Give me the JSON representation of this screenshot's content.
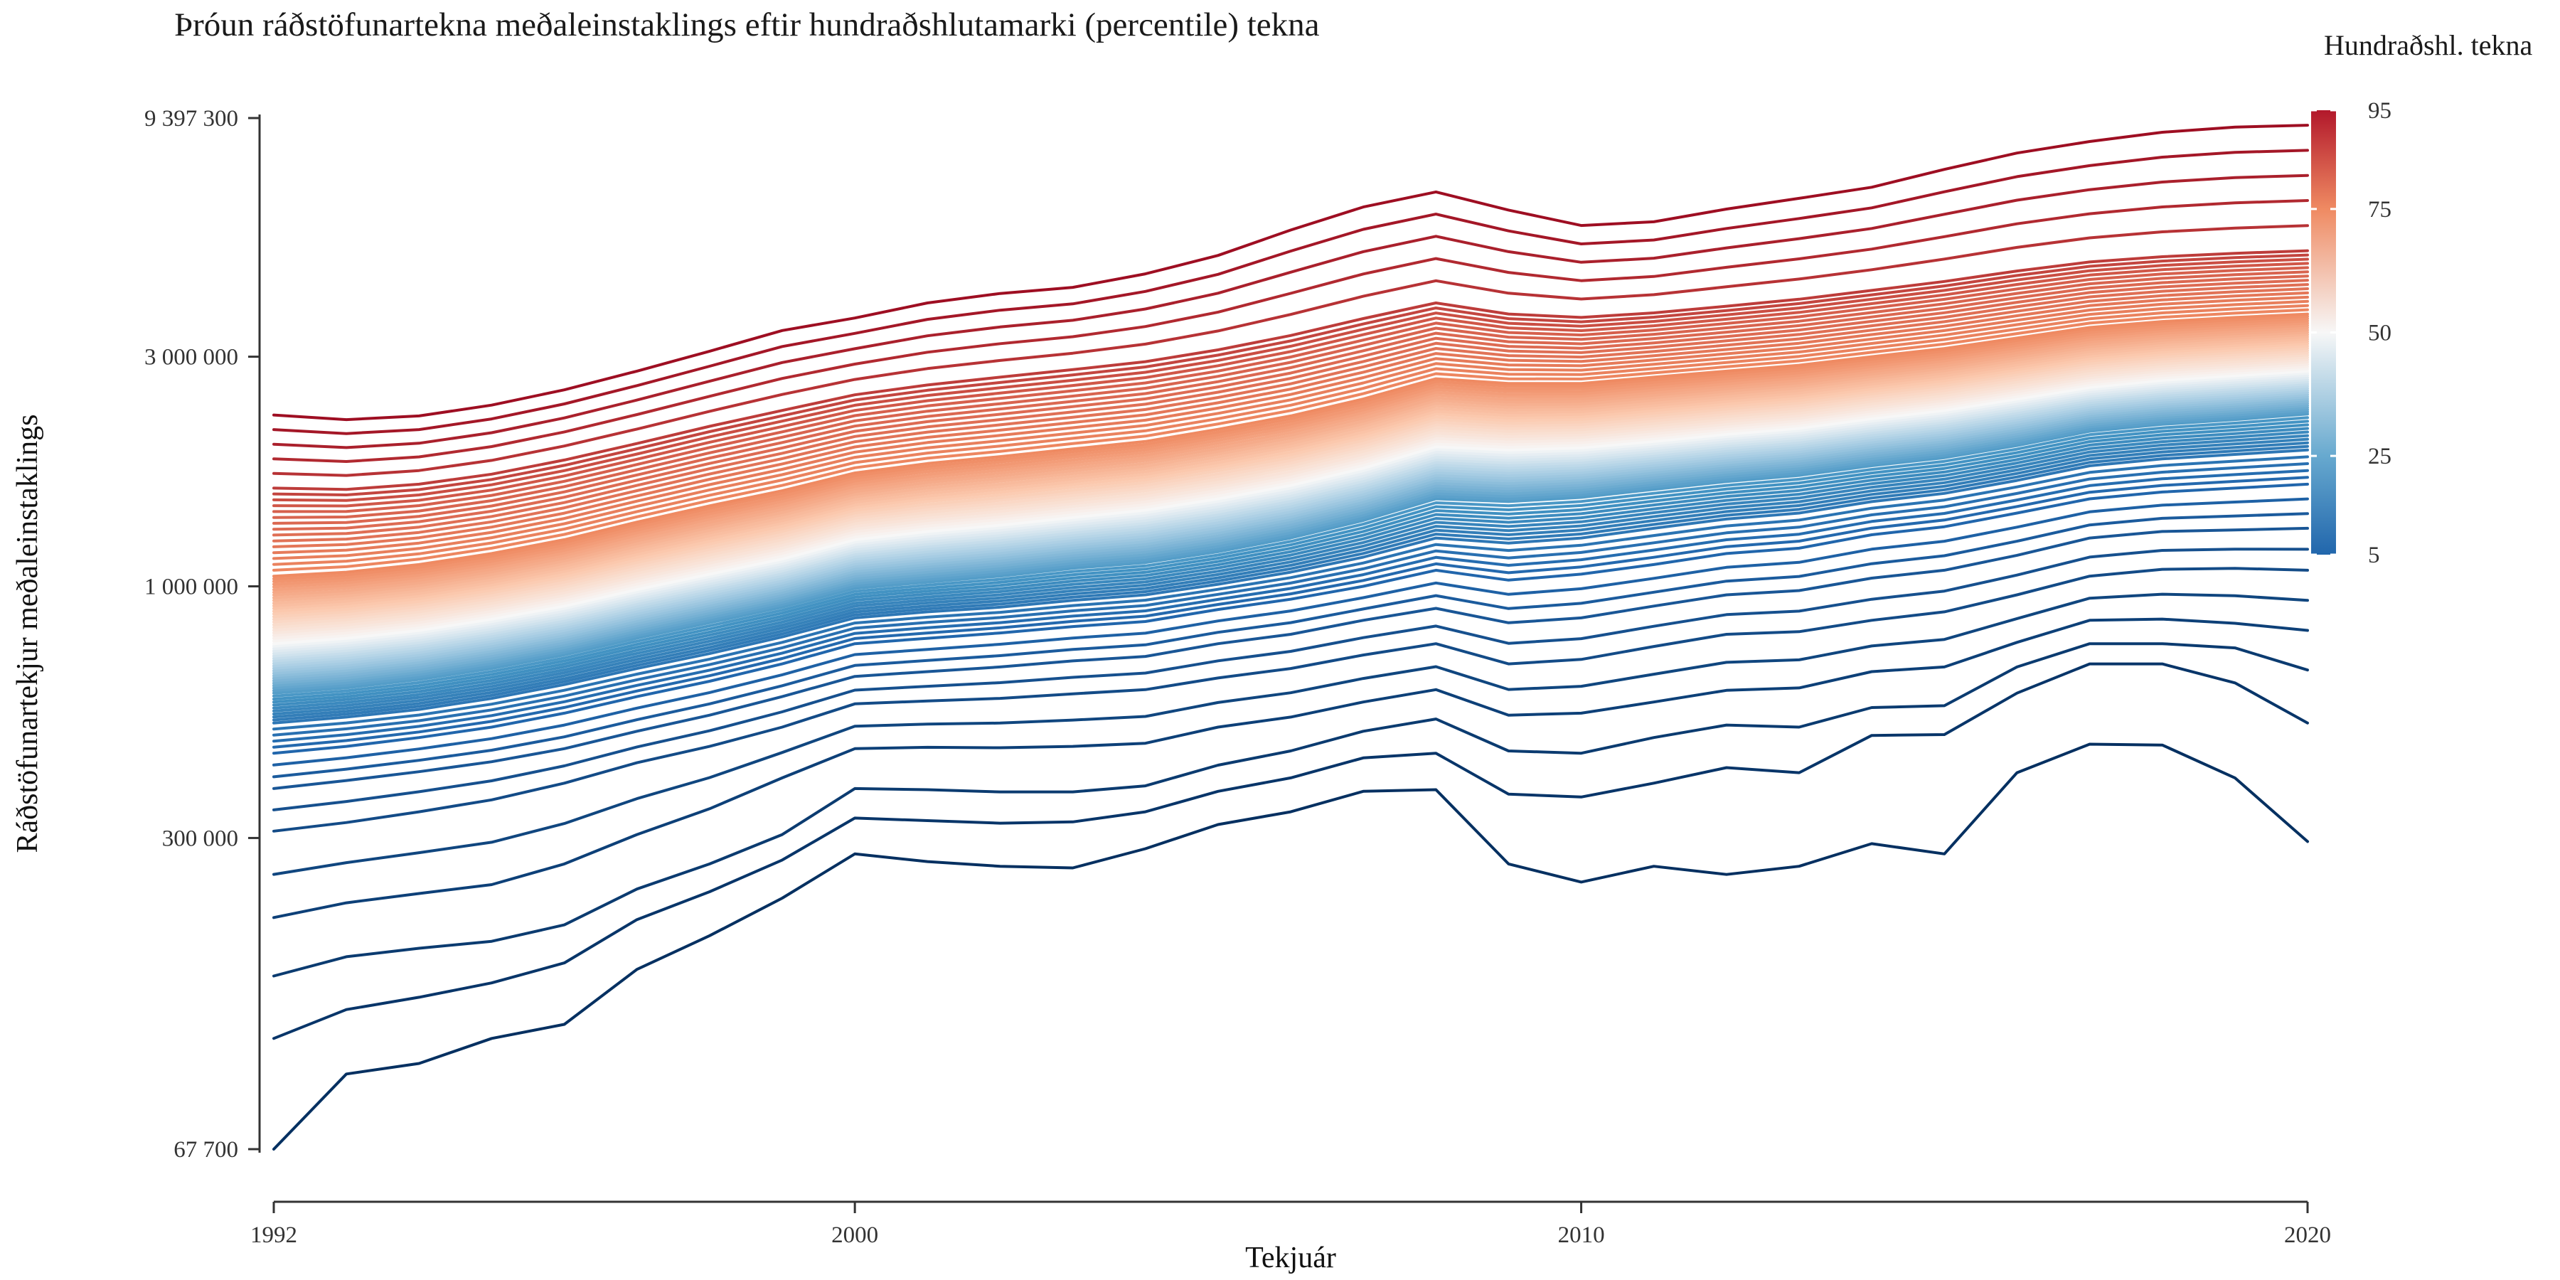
{
  "chart_data": {
    "type": "line",
    "title": "Þróun ráðstöfunartekna meðaleinstaklings eftir hundraðshlutamarki (percentile) tekna",
    "xlabel": "Tekjuár",
    "ylabel": "Ráðstöfunartekjur meðaleinstaklings",
    "x": [
      1992,
      1993,
      1994,
      1995,
      1996,
      1997,
      1998,
      1999,
      2000,
      2001,
      2002,
      2003,
      2004,
      2005,
      2006,
      2007,
      2008,
      2009,
      2010,
      2011,
      2012,
      2013,
      2014,
      2015,
      2016,
      2017,
      2018,
      2019,
      2020
    ],
    "xlim": [
      1992,
      2020
    ],
    "x_ticks": [
      "1992",
      "2000",
      "2010",
      "2020"
    ],
    "y_scale": "log",
    "ylim": [
      67700,
      9397300
    ],
    "y_ticks": [
      {
        "value": 9397300,
        "label": "9 397 300"
      },
      {
        "value": 3000000,
        "label": "3 000 000"
      },
      {
        "value": 1000000,
        "label": "1 000 000"
      },
      {
        "value": 300000,
        "label": "300 000"
      },
      {
        "value": 67700,
        "label": "67 700"
      }
    ],
    "legend": {
      "title": "Hundraðshl. tekna",
      "position": "right",
      "ticks": [
        "95",
        "75",
        "50",
        "25",
        "5"
      ],
      "colors": [
        "#b2182b",
        "#ef8a62",
        "#f7f7f7",
        "#67a9cf",
        "#2166ac"
      ]
    },
    "grid": false,
    "series_note": "One line per income percentile; anchor curves below, intermediate percentiles interpolated in log space.",
    "anchor_series": [
      {
        "percentile": 5,
        "values": [
          67700,
          97000,
          102000,
          115000,
          123000,
          160000,
          188000,
          225000,
          278000,
          268000,
          262000,
          260000,
          285000,
          320000,
          340000,
          375000,
          378000,
          265000,
          243000,
          262000,
          252000,
          262000,
          292000,
          278000,
          410000,
          470000,
          468000,
          400000,
          295000
        ]
      },
      {
        "percentile": 6,
        "values": [
          115000,
          132000,
          140000,
          150000,
          165000,
          203000,
          232000,
          270000,
          330000,
          326000,
          322000,
          324000,
          340000,
          375000,
          400000,
          440000,
          450000,
          370000,
          365000,
          390000,
          420000,
          410000,
          490000,
          492000,
          600000,
          690000,
          690000,
          630000,
          520000
        ]
      },
      {
        "percentile": 7,
        "values": [
          155000,
          170000,
          177000,
          183000,
          198000,
          235000,
          265000,
          305000,
          380000,
          378000,
          374000,
          374000,
          385000,
          425000,
          455000,
          500000,
          530000,
          455000,
          450000,
          485000,
          515000,
          510000,
          560000,
          565000,
          680000,
          760000,
          760000,
          745000,
          670000
        ]
      },
      {
        "percentile": 8,
        "values": [
          205000,
          220000,
          230000,
          240000,
          265000,
          305000,
          345000,
          400000,
          460000,
          463000,
          462000,
          465000,
          472000,
          510000,
          535000,
          575000,
          610000,
          540000,
          545000,
          575000,
          608000,
          615000,
          665000,
          680000,
          765000,
          850000,
          855000,
          838000,
          810000
        ]
      },
      {
        "percentile": 10,
        "values": [
          310000,
          323000,
          340000,
          360000,
          390000,
          430000,
          465000,
          510000,
          570000,
          578000,
          585000,
          598000,
          610000,
          645000,
          675000,
          720000,
          760000,
          690000,
          705000,
          750000,
          795000,
          805000,
          850000,
          885000,
          960000,
          1050000,
          1085000,
          1090000,
          1080000
        ]
      },
      {
        "percentile": 12,
        "values": [
          380000,
          395000,
          412000,
          432000,
          460000,
          500000,
          540000,
          590000,
          650000,
          665000,
          680000,
          700000,
          715000,
          760000,
          795000,
          850000,
          900000,
          840000,
          860000,
          910000,
          960000,
          980000,
          1040000,
          1080000,
          1160000,
          1260000,
          1300000,
          1310000,
          1320000
        ]
      },
      {
        "percentile": 15,
        "values": [
          450000,
          465000,
          485000,
          510000,
          545000,
          590000,
          635000,
          690000,
          760000,
          780000,
          800000,
          825000,
          845000,
          895000,
          940000,
          1000000,
          1080000,
          1030000,
          1060000,
          1110000,
          1170000,
          1200000,
          1280000,
          1330000,
          1420000,
          1520000,
          1570000,
          1600000,
          1630000
        ]
      },
      {
        "percentile": 20,
        "values": [
          520000,
          535000,
          555000,
          585000,
          625000,
          675000,
          725000,
          785000,
          860000,
          885000,
          905000,
          935000,
          960000,
          1010000,
          1070000,
          1150000,
          1260000,
          1230000,
          1260000,
          1320000,
          1380000,
          1420000,
          1500000,
          1560000,
          1660000,
          1780000,
          1840000,
          1880000,
          1920000
        ]
      },
      {
        "percentile": 30,
        "values": [
          600000,
          615000,
          640000,
          675000,
          720000,
          780000,
          840000,
          905000,
          990000,
          1020000,
          1050000,
          1090000,
          1120000,
          1180000,
          1260000,
          1370000,
          1520000,
          1500000,
          1530000,
          1590000,
          1650000,
          1700000,
          1780000,
          1850000,
          1960000,
          2100000,
          2170000,
          2220000,
          2280000
        ]
      },
      {
        "percentile": 50,
        "values": [
          760000,
          780000,
          810000,
          855000,
          910000,
          985000,
          1060000,
          1140000,
          1250000,
          1300000,
          1340000,
          1390000,
          1440000,
          1520000,
          1620000,
          1760000,
          1950000,
          1920000,
          1940000,
          2000000,
          2070000,
          2130000,
          2230000,
          2320000,
          2450000,
          2590000,
          2680000,
          2740000,
          2800000
        ]
      },
      {
        "percentile": 75,
        "values": [
          1050000,
          1070000,
          1110000,
          1170000,
          1250000,
          1360000,
          1470000,
          1580000,
          1720000,
          1800000,
          1860000,
          1930000,
          2000000,
          2120000,
          2260000,
          2450000,
          2700000,
          2640000,
          2640000,
          2720000,
          2800000,
          2880000,
          3000000,
          3120000,
          3280000,
          3450000,
          3550000,
          3620000,
          3680000
        ]
      },
      {
        "percentile": 90,
        "values": [
          1600000,
          1590000,
          1630000,
          1710000,
          1830000,
          1980000,
          2150000,
          2320000,
          2500000,
          2620000,
          2720000,
          2820000,
          2930000,
          3100000,
          3320000,
          3600000,
          3880000,
          3680000,
          3620000,
          3700000,
          3820000,
          3950000,
          4120000,
          4300000,
          4520000,
          4720000,
          4840000,
          4920000,
          4980000
        ]
      },
      {
        "percentile": 95,
        "values": [
          2270000,
          2220000,
          2260000,
          2380000,
          2560000,
          2800000,
          3080000,
          3400000,
          3610000,
          3880000,
          4060000,
          4180000,
          4460000,
          4870000,
          5500000,
          6140000,
          6600000,
          6050000,
          5620000,
          5720000,
          6080000,
          6400000,
          6750000,
          7350000,
          7950000,
          8400000,
          8780000,
          9000000,
          9080000
        ]
      }
    ]
  }
}
